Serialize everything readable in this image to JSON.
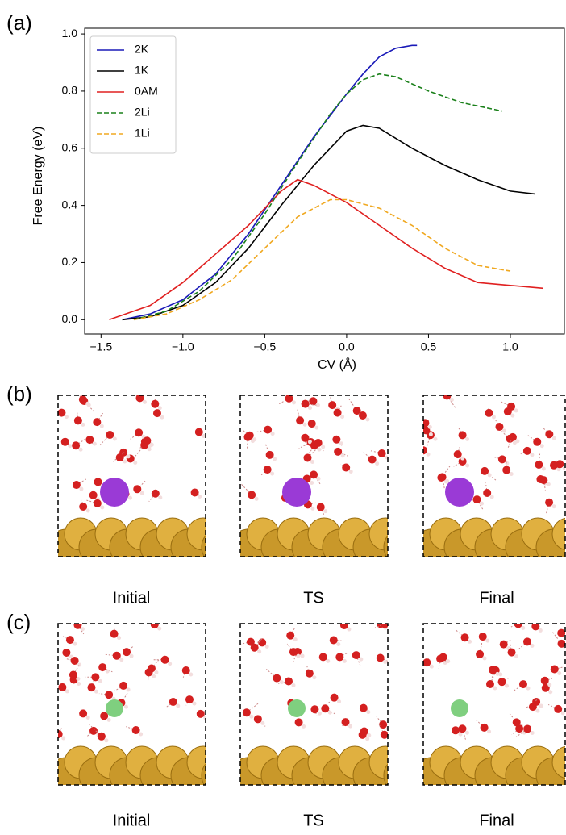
{
  "chart_data": {
    "type": "line",
    "xlabel": "CV (Å)",
    "ylabel": "Free Energy (eV)",
    "xlim": [
      -1.6,
      1.33
    ],
    "ylim": [
      -0.05,
      1.02
    ],
    "xticks": [
      {
        "value": -1.5,
        "label": "−1.5"
      },
      {
        "value": -1.0,
        "label": "−1.0"
      },
      {
        "value": -0.5,
        "label": "−0.5"
      },
      {
        "value": 0.0,
        "label": "0.0"
      },
      {
        "value": 0.5,
        "label": "0.5"
      },
      {
        "value": 1.0,
        "label": "1.0"
      }
    ],
    "yticks": [
      {
        "value": 0.0,
        "label": "0.0"
      },
      {
        "value": 0.2,
        "label": "0.2"
      },
      {
        "value": 0.4,
        "label": "0.4"
      },
      {
        "value": 0.6,
        "label": "0.6"
      },
      {
        "value": 0.8,
        "label": "0.8"
      },
      {
        "value": 1.0,
        "label": "1.0"
      }
    ],
    "legend": "upper left",
    "series": [
      {
        "name": "2K",
        "color": "#1a1ab8",
        "dash": "solid",
        "x": [
          -1.37,
          -1.2,
          -1.0,
          -0.8,
          -0.6,
          -0.4,
          -0.2,
          0.0,
          0.1,
          0.2,
          0.3,
          0.4,
          0.43
        ],
        "values": [
          0,
          0.02,
          0.07,
          0.16,
          0.3,
          0.47,
          0.64,
          0.79,
          0.86,
          0.92,
          0.95,
          0.96,
          0.96
        ]
      },
      {
        "name": "1K",
        "color": "#000000",
        "dash": "solid",
        "x": [
          -1.37,
          -1.2,
          -1.0,
          -0.8,
          -0.6,
          -0.4,
          -0.2,
          0.0,
          0.1,
          0.2,
          0.4,
          0.6,
          0.8,
          1.0,
          1.15
        ],
        "values": [
          0,
          0.01,
          0.05,
          0.13,
          0.25,
          0.4,
          0.54,
          0.66,
          0.68,
          0.67,
          0.6,
          0.54,
          0.49,
          0.45,
          0.44
        ]
      },
      {
        "name": "0AM",
        "color": "#e02020",
        "dash": "solid",
        "x": [
          -1.45,
          -1.2,
          -1.0,
          -0.8,
          -0.6,
          -0.4,
          -0.3,
          -0.2,
          0.0,
          0.2,
          0.4,
          0.6,
          0.8,
          1.0,
          1.2
        ],
        "values": [
          0,
          0.05,
          0.13,
          0.23,
          0.33,
          0.45,
          0.49,
          0.47,
          0.41,
          0.33,
          0.25,
          0.18,
          0.13,
          0.12,
          0.11
        ]
      },
      {
        "name": "2Li",
        "color": "#1a801a",
        "dash": "dashed",
        "x": [
          -1.3,
          -1.1,
          -0.9,
          -0.7,
          -0.5,
          -0.3,
          -0.1,
          0.0,
          0.1,
          0.2,
          0.3,
          0.5,
          0.7,
          0.95
        ],
        "values": [
          0,
          0.03,
          0.1,
          0.21,
          0.37,
          0.55,
          0.72,
          0.79,
          0.84,
          0.86,
          0.85,
          0.8,
          0.76,
          0.73
        ]
      },
      {
        "name": "1Li",
        "color": "#f0a820",
        "dash": "dashed",
        "x": [
          -1.3,
          -1.1,
          -0.9,
          -0.7,
          -0.5,
          -0.3,
          -0.1,
          0.0,
          0.2,
          0.4,
          0.6,
          0.8,
          1.0
        ],
        "values": [
          0,
          0.02,
          0.07,
          0.14,
          0.25,
          0.36,
          0.42,
          0.42,
          0.39,
          0.33,
          0.25,
          0.19,
          0.17
        ]
      }
    ]
  },
  "figure": {
    "panel_labels": [
      "(a)",
      "(b)",
      "(c)"
    ],
    "rows": [
      [
        "Initial",
        "TS",
        "Final"
      ],
      [
        "Initial",
        "TS",
        "Final"
      ]
    ]
  }
}
